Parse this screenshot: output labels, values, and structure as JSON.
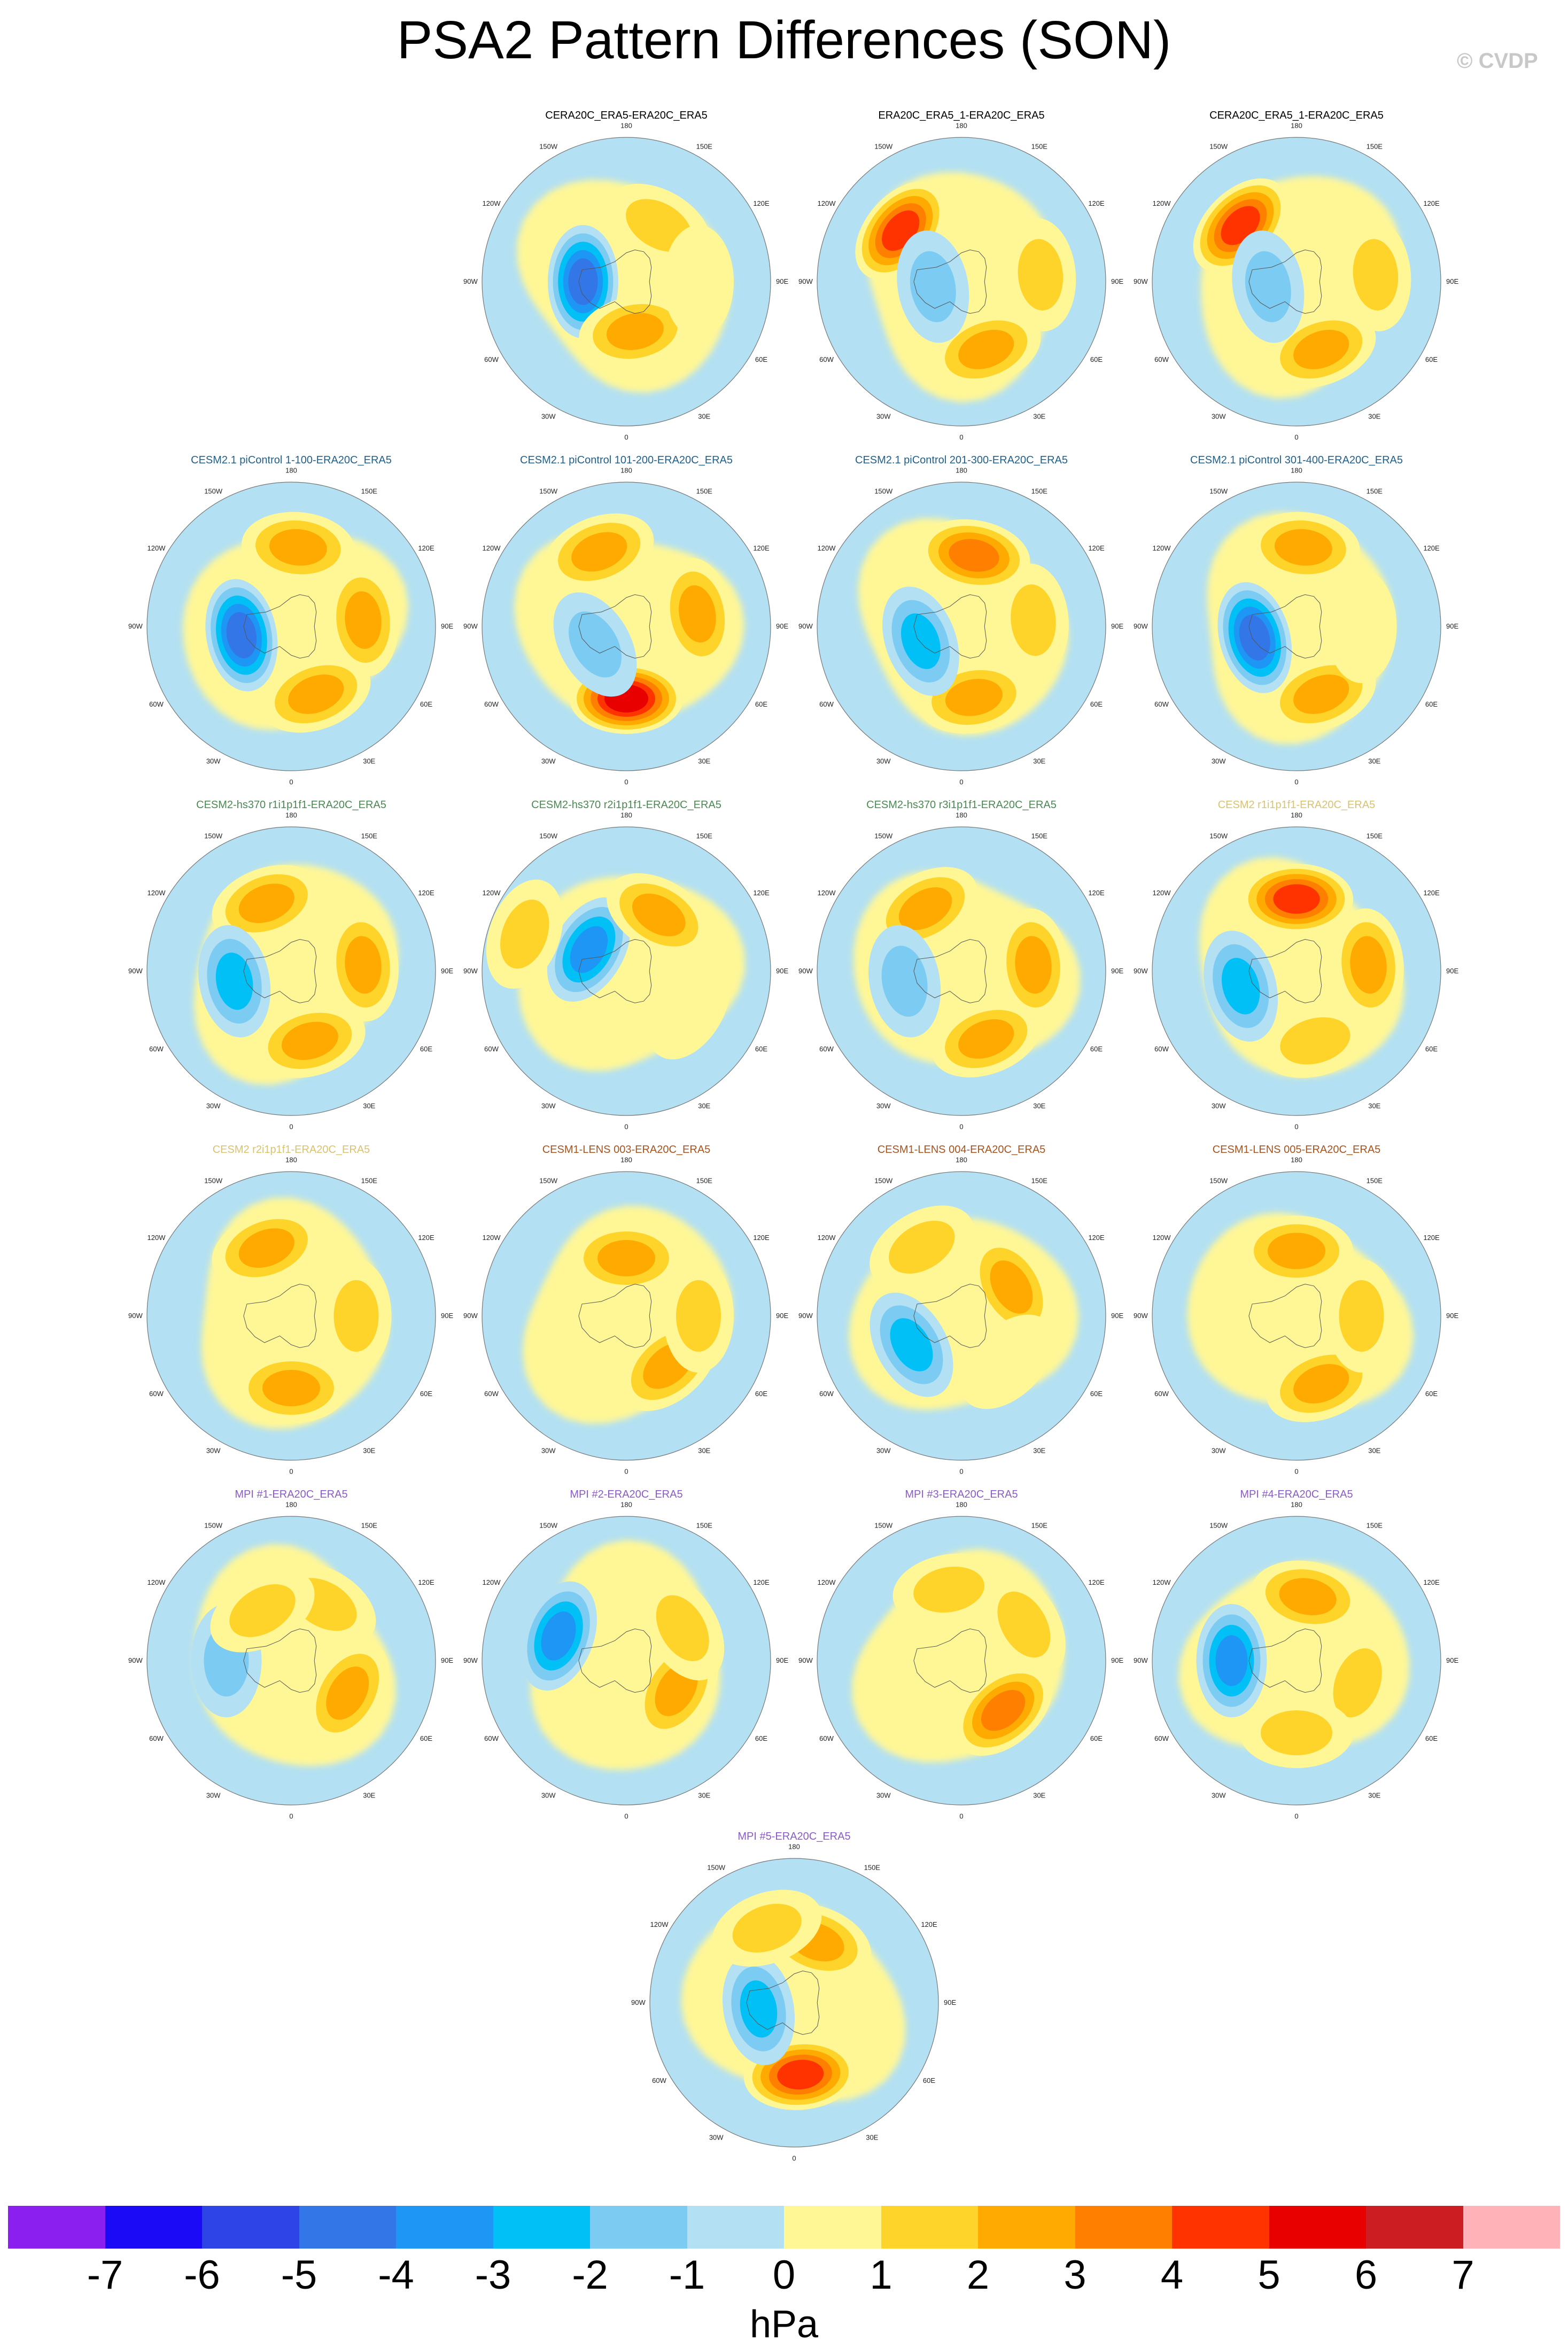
{
  "title": "PSA2 Pattern Differences (SON)",
  "watermark": "© CVDP",
  "lon_labels": [
    "0",
    "30E",
    "60E",
    "90E",
    "120E",
    "150E",
    "180",
    "150W",
    "120W",
    "90W",
    "60W",
    "30W"
  ],
  "panels": [
    {
      "title": "CERA20C_ERA5-ERA20C_ERA5",
      "color": "#000000"
    },
    {
      "title": "ERA20C_ERA5_1-ERA20C_ERA5",
      "color": "#000000"
    },
    {
      "title": "CERA20C_ERA5_1-ERA20C_ERA5",
      "color": "#000000"
    },
    {
      "title": "CESM2.1 piControl 1-100-ERA20C_ERA5",
      "color": "#1f5f8b"
    },
    {
      "title": "CESM2.1 piControl 101-200-ERA20C_ERA5",
      "color": "#1f5f8b"
    },
    {
      "title": "CESM2.1 piControl 201-300-ERA20C_ERA5",
      "color": "#1f5f8b"
    },
    {
      "title": "CESM2.1 piControl 301-400-ERA20C_ERA5",
      "color": "#1f5f8b"
    },
    {
      "title": "CESM2-hs370 r1i1p1f1-ERA20C_ERA5",
      "color": "#4a8a52"
    },
    {
      "title": "CESM2-hs370 r2i1p1f1-ERA20C_ERA5",
      "color": "#4a8a52"
    },
    {
      "title": "CESM2-hs370 r3i1p1f1-ERA20C_ERA5",
      "color": "#4a8a52"
    },
    {
      "title": "CESM2 r1i1p1f1-ERA20C_ERA5",
      "color": "#d9c270"
    },
    {
      "title": "CESM2 r2i1p1f1-ERA20C_ERA5",
      "color": "#d9c270"
    },
    {
      "title": "CESM1-LENS 003-ERA20C_ERA5",
      "color": "#a8521e"
    },
    {
      "title": "CESM1-LENS 004-ERA20C_ERA5",
      "color": "#a8521e"
    },
    {
      "title": "CESM1-LENS 005-ERA20C_ERA5",
      "color": "#a8521e"
    },
    {
      "title": "MPI #1-ERA20C_ERA5",
      "color": "#8a5bc7"
    },
    {
      "title": "MPI #2-ERA20C_ERA5",
      "color": "#8a5bc7"
    },
    {
      "title": "MPI #3-ERA20C_ERA5",
      "color": "#8a5bc7"
    },
    {
      "title": "MPI #4-ERA20C_ERA5",
      "color": "#8a5bc7"
    },
    {
      "title": "MPI #5-ERA20C_ERA5",
      "color": "#8a5bc7"
    }
  ],
  "chart_data": {
    "type": "heatmap",
    "projection": "south polar stereographic",
    "colorbar": {
      "units": "hPa",
      "levels": [
        -7,
        -6,
        -5,
        -4,
        -3,
        -2,
        -1,
        0,
        1,
        2,
        3,
        4,
        5,
        6,
        7
      ],
      "tick_labels": [
        "-7",
        "-6",
        "-5",
        "-4",
        "-3",
        "-2",
        "-1",
        "0",
        "1",
        "2",
        "3",
        "4",
        "5",
        "6",
        "7"
      ],
      "colors": [
        "#8a1ff0",
        "#1a0af5",
        "#2f44e6",
        "#3376e8",
        "#1e96f5",
        "#00c0f5",
        "#7ccbf2",
        "#b3e0f2",
        "#fff796",
        "#ffd42a",
        "#ffaa00",
        "#ff7f00",
        "#ff3300",
        "#e80000",
        "#cc1e22",
        "#ffb3b8"
      ]
    },
    "panels": [
      {
        "features": [
          {
            "lon": -90,
            "r": 0.3,
            "v": -5
          },
          {
            "lon": 10,
            "r": 0.35,
            "v": 3
          },
          {
            "lon": 150,
            "r": 0.45,
            "v": 2
          },
          {
            "lon": 90,
            "r": 0.5,
            "v": 1
          }
        ]
      },
      {
        "features": [
          {
            "lon": 20,
            "r": 0.5,
            "v": 3
          },
          {
            "lon": 95,
            "r": 0.55,
            "v": 2
          },
          {
            "lon": -130,
            "r": 0.55,
            "v": 5
          },
          {
            "lon": -80,
            "r": 0.2,
            "v": -2
          }
        ]
      },
      {
        "features": [
          {
            "lon": 20,
            "r": 0.5,
            "v": 3
          },
          {
            "lon": 95,
            "r": 0.55,
            "v": 2
          },
          {
            "lon": -135,
            "r": 0.55,
            "v": 5
          },
          {
            "lon": -80,
            "r": 0.2,
            "v": -2
          }
        ]
      },
      {
        "features": [
          {
            "lon": -80,
            "r": 0.35,
            "v": -5
          },
          {
            "lon": 20,
            "r": 0.5,
            "v": 3
          },
          {
            "lon": 95,
            "r": 0.5,
            "v": 3
          },
          {
            "lon": 175,
            "r": 0.55,
            "v": 3
          }
        ]
      },
      {
        "features": [
          {
            "lon": 0,
            "r": 0.5,
            "v": 6
          },
          {
            "lon": 100,
            "r": 0.5,
            "v": 3
          },
          {
            "lon": -160,
            "r": 0.55,
            "v": 3
          },
          {
            "lon": -60,
            "r": 0.25,
            "v": -2
          }
        ]
      },
      {
        "features": [
          {
            "lon": 10,
            "r": 0.5,
            "v": 3
          },
          {
            "lon": 95,
            "r": 0.5,
            "v": 2
          },
          {
            "lon": 170,
            "r": 0.5,
            "v": 4
          },
          {
            "lon": -70,
            "r": 0.3,
            "v": -3
          }
        ]
      },
      {
        "features": [
          {
            "lon": 20,
            "r": 0.5,
            "v": 3
          },
          {
            "lon": -75,
            "r": 0.3,
            "v": -5
          },
          {
            "lon": 175,
            "r": 0.55,
            "v": 3
          },
          {
            "lon": 90,
            "r": 0.45,
            "v": 1
          }
        ]
      },
      {
        "features": [
          {
            "lon": 15,
            "r": 0.5,
            "v": 3
          },
          {
            "lon": 95,
            "r": 0.5,
            "v": 3
          },
          {
            "lon": -160,
            "r": 0.5,
            "v": 3
          },
          {
            "lon": -80,
            "r": 0.4,
            "v": -3
          }
        ]
      },
      {
        "features": [
          {
            "lon": -120,
            "r": 0.3,
            "v": -4
          },
          {
            "lon": 150,
            "r": 0.45,
            "v": 3
          },
          {
            "lon": 60,
            "r": 0.5,
            "v": 1
          },
          {
            "lon": -110,
            "r": 0.75,
            "v": 2
          }
        ]
      },
      {
        "features": [
          {
            "lon": 20,
            "r": 0.5,
            "v": 3
          },
          {
            "lon": 95,
            "r": 0.5,
            "v": 3
          },
          {
            "lon": -150,
            "r": 0.5,
            "v": 3
          },
          {
            "lon": -80,
            "r": 0.4,
            "v": -2
          }
        ]
      },
      {
        "features": [
          {
            "lon": 15,
            "r": 0.5,
            "v": 2
          },
          {
            "lon": 95,
            "r": 0.5,
            "v": 3
          },
          {
            "lon": 180,
            "r": 0.5,
            "v": 5
          },
          {
            "lon": -75,
            "r": 0.4,
            "v": -3
          }
        ]
      },
      {
        "features": [
          {
            "lon": 0,
            "r": 0.5,
            "v": 3
          },
          {
            "lon": 90,
            "r": 0.45,
            "v": 2
          },
          {
            "lon": -160,
            "r": 0.5,
            "v": 3
          }
        ]
      },
      {
        "features": [
          {
            "lon": 40,
            "r": 0.45,
            "v": 3
          },
          {
            "lon": 90,
            "r": 0.5,
            "v": 2
          },
          {
            "lon": 180,
            "r": 0.4,
            "v": 3
          }
        ]
      },
      {
        "features": [
          {
            "lon": -60,
            "r": 0.4,
            "v": -3
          },
          {
            "lon": 120,
            "r": 0.4,
            "v": 3
          },
          {
            "lon": -150,
            "r": 0.55,
            "v": 2
          },
          {
            "lon": 45,
            "r": 0.45,
            "v": 1
          }
        ]
      },
      {
        "features": [
          {
            "lon": 20,
            "r": 0.5,
            "v": 3
          },
          {
            "lon": 90,
            "r": 0.45,
            "v": 2
          },
          {
            "lon": 180,
            "r": 0.45,
            "v": 3
          }
        ]
      },
      {
        "features": [
          {
            "lon": -90,
            "r": 0.45,
            "v": -2
          },
          {
            "lon": 60,
            "r": 0.45,
            "v": 3
          },
          {
            "lon": 150,
            "r": 0.45,
            "v": 2
          },
          {
            "lon": -150,
            "r": 0.4,
            "v": 2
          }
        ]
      },
      {
        "features": [
          {
            "lon": -110,
            "r": 0.5,
            "v": -4
          },
          {
            "lon": 60,
            "r": 0.4,
            "v": 3
          },
          {
            "lon": 120,
            "r": 0.45,
            "v": 2
          }
        ]
      },
      {
        "features": [
          {
            "lon": 40,
            "r": 0.45,
            "v": 4
          },
          {
            "lon": 120,
            "r": 0.5,
            "v": 2
          },
          {
            "lon": -170,
            "r": 0.5,
            "v": 2
          }
        ]
      },
      {
        "features": [
          {
            "lon": -90,
            "r": 0.45,
            "v": -4
          },
          {
            "lon": 70,
            "r": 0.45,
            "v": 2
          },
          {
            "lon": 170,
            "r": 0.45,
            "v": 3
          },
          {
            "lon": 0,
            "r": 0.5,
            "v": 2
          }
        ]
      },
      {
        "features": [
          {
            "lon": 5,
            "r": 0.5,
            "v": 5
          },
          {
            "lon": -80,
            "r": 0.25,
            "v": -3
          },
          {
            "lon": 160,
            "r": 0.45,
            "v": 3
          },
          {
            "lon": -160,
            "r": 0.55,
            "v": 2
          }
        ]
      }
    ]
  }
}
